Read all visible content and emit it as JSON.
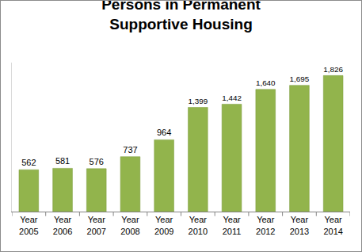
{
  "chart_data": {
    "type": "bar",
    "title": "Persons in Permanent Supportive Housing",
    "categories": [
      "Year 2005",
      "Year 2006",
      "Year 2007",
      "Year 2008",
      "Year 2009",
      "Year 2010",
      "Year 2011",
      "Year 2012",
      "Year 2013",
      "Year 2014"
    ],
    "values": [
      562,
      581,
      576,
      737,
      964,
      1399,
      1442,
      1640,
      1695,
      1826
    ],
    "value_labels": [
      "562",
      "581",
      "576",
      "737",
      "964",
      "1,399",
      "1,442",
      "1,640",
      "1,695",
      "1,826"
    ],
    "color": "#92b44c",
    "ylim": [
      0,
      2000
    ],
    "grid": false,
    "data_labels": true,
    "tick_labels": "x"
  }
}
